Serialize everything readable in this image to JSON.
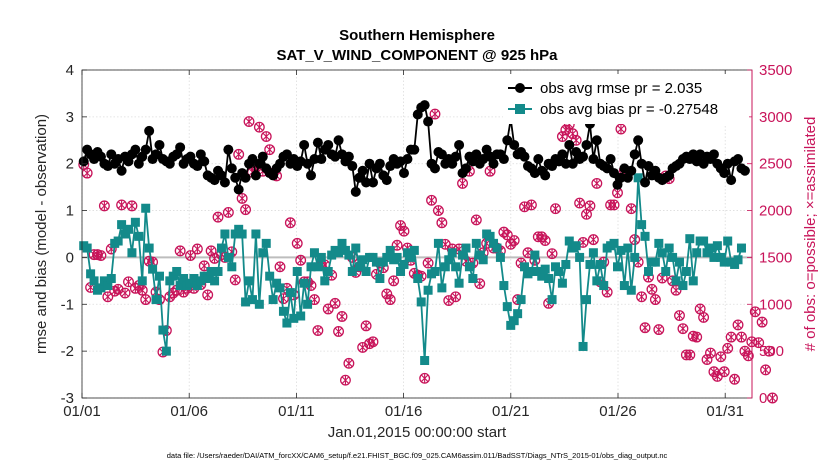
{
  "chart_data": {
    "type": "line",
    "title": "Southern Hemisphere",
    "subtitle": "SAT_V_WIND_COMPONENT @ 925 hPa",
    "xlabel": "Jan.01,2015 00:00:00 start",
    "ylabel": "rmse and bias (model - observation)",
    "y2label": "# of obs: o=possible; ×=assimilated",
    "footnote": "data file: /Users/raeder/DAI/ATM_forcXX/CAM6_setup/f.e21.FHIST_BGC.f09_025.CAM6assim.011/BadSST/Diags_NTrS_2015-01/obs_diag_output.nc",
    "xlim": [
      0,
      31.25
    ],
    "ylim": [
      -3,
      4
    ],
    "y2lim": [
      0,
      3500
    ],
    "xticks": [
      0,
      5,
      10,
      15,
      20,
      25,
      30
    ],
    "xticklabels": [
      "01/01",
      "01/06",
      "01/11",
      "01/16",
      "01/21",
      "01/26",
      "01/31"
    ],
    "yticks": [
      -3,
      -2,
      -1,
      0,
      1,
      2,
      3,
      4
    ],
    "yticklabels": [
      "-3",
      "-2",
      "-1",
      "0",
      "1",
      "2",
      "3",
      "4"
    ],
    "y2ticks": [
      0,
      500,
      1000,
      1500,
      2000,
      2500,
      3000,
      3500
    ],
    "y2ticklabels": [
      "0",
      "500",
      "1000",
      "1500",
      "2000",
      "2500",
      "3000",
      "3500"
    ],
    "grid": true,
    "legend_position": "top-right",
    "colors": {
      "rmse": "#000000",
      "bias": "#138a8a",
      "counts": "#c8145a",
      "zero": "#bdbdbd"
    },
    "series": [
      {
        "name": "obs avg rmse pr = 2.035",
        "axis": "left",
        "marker": "circle",
        "values": [
          2.05,
          2.3,
          2.2,
          2.1,
          2.25,
          2.15,
          2.0,
          1.95,
          2.2,
          2.0,
          2.1,
          1.85,
          2.15,
          2.05,
          2.2,
          2.3,
          2.0,
          2.15,
          2.3,
          2.7,
          2.1,
          2.2,
          2.4,
          2.1,
          2.05,
          2.0,
          2.15,
          2.2,
          2.35,
          2.0,
          2.1,
          2.15,
          2.0,
          1.95,
          2.2,
          2.05,
          1.75,
          1.7,
          1.65,
          1.85,
          1.75,
          1.6,
          2.3,
          1.9,
          1.7,
          1.45,
          1.8,
          1.7,
          2.0,
          2.1,
          1.75,
          2.0,
          2.15,
          1.9,
          1.8,
          1.75,
          1.9,
          2.0,
          2.15,
          2.2,
          2.0,
          2.1,
          1.95,
          2.05,
          2.4,
          2.0,
          1.75,
          2.1,
          2.45,
          2.1,
          2.3,
          2.4,
          2.2,
          2.15,
          2.5,
          2.2,
          2.05,
          2.15,
          1.95,
          1.4,
          1.7,
          1.85,
          1.6,
          2.0,
          1.6,
          1.9,
          2.0,
          1.75,
          1.65,
          1.95,
          2.1,
          2.0,
          2.05,
          1.8,
          2.1,
          2.3,
          2.3,
          3.05,
          3.2,
          3.25,
          2.9,
          2.0,
          1.9,
          2.25,
          2.2,
          2.0,
          2.1,
          2.0,
          2.15,
          2.4,
          1.8,
          1.9,
          2.15,
          2.05,
          2.2,
          2.0,
          2.1,
          2.3,
          2.15,
          2.0,
          2.2,
          2.2,
          2.1,
          2.5,
          2.95,
          2.4,
          2.2,
          2.25,
          2.15,
          1.95,
          1.9,
          1.8,
          2.1,
          1.85,
          1.75,
          2.0,
          1.95,
          2.1,
          2.05,
          2.2,
          2.0,
          2.4,
          2.0,
          2.25,
          2.1,
          2.15,
          2.4,
          2.85,
          2.1,
          2.5,
          2.0,
          1.95,
          1.9,
          2.1,
          1.8,
          1.55,
          1.7,
          1.9,
          1.7,
          1.85,
          2.2,
          2.5,
          2.0,
          1.6,
          1.95,
          1.75,
          1.85,
          1.7,
          1.65,
          1.7,
          1.75,
          1.9,
          1.95,
          2.0,
          2.1,
          2.15,
          2.1,
          2.2,
          2.05,
          2.2,
          2.0,
          2.15,
          2.1,
          2.2,
          2.0,
          1.9,
          1.8,
          2.0,
          1.65,
          2.05,
          2.1,
          1.9,
          1.85
        ]
      },
      {
        "name": "obs avg bias pr = -0.27548",
        "axis": "left",
        "marker": "square",
        "values": [
          0.25,
          0.2,
          -0.35,
          -0.5,
          -0.7,
          -0.65,
          -0.5,
          -0.6,
          -0.45,
          0.3,
          0.35,
          0.7,
          0.5,
          0.6,
          0.1,
          0.75,
          0.45,
          -0.5,
          1.05,
          0.2,
          -0.25,
          -0.9,
          -0.4,
          -1.55,
          -2.0,
          -0.5,
          -0.4,
          -0.3,
          -0.6,
          -0.45,
          -0.6,
          -0.55,
          -0.45,
          -0.6,
          -0.5,
          -0.4,
          -0.45,
          -0.3,
          -0.5,
          -0.3,
          0.2,
          0.5,
          0.0,
          -0.2,
          0.5,
          0.6,
          0.5,
          -0.95,
          -0.5,
          -0.9,
          0.5,
          -1.0,
          0.1,
          0.3,
          -0.4,
          -0.9,
          -0.55,
          -0.65,
          -1.15,
          -1.4,
          -0.75,
          -1.3,
          -0.3,
          -1.25,
          -0.55,
          -1.0,
          -0.2,
          0.1,
          -0.2,
          0.0,
          -0.5,
          -0.3,
          0.05,
          0.15,
          0.1,
          0.3,
          0.15,
          0.05,
          -0.3,
          0.2,
          -0.2,
          -0.05,
          -0.3,
          0.0,
          0.0,
          -0.1,
          -0.45,
          -0.1,
          0.0,
          0.15,
          -0.05,
          0.0,
          -0.3,
          -0.15,
          0.1,
          0.0,
          0.15,
          -0.45,
          -0.95,
          -2.2,
          -0.7,
          -0.35,
          -0.3,
          0.3,
          -0.65,
          -0.2,
          -0.05,
          0.1,
          -0.2,
          -0.55,
          0.05,
          0.2,
          -0.2,
          -0.45,
          0.3,
          0.05,
          -0.05,
          0.5,
          0.45,
          0.3,
          0.2,
          0.0,
          -0.6,
          -1.05,
          -1.45,
          -1.35,
          -1.2,
          -0.9,
          -0.2,
          -0.35,
          -0.3,
          0.05,
          -0.3,
          -0.4,
          -0.25,
          -0.45,
          -0.9,
          -0.2,
          -0.3,
          -0.55,
          -0.15,
          0.35,
          0.2,
          0.25,
          0.0,
          -1.9,
          -0.9,
          -0.15,
          0.1,
          -0.5,
          -0.15,
          -0.6,
          0.2,
          0.25,
          0.3,
          -0.2,
          0.15,
          -0.6,
          0.2,
          -0.7,
          0.0,
          1.7,
          0.7,
          0.45,
          -0.3,
          -0.1,
          -0.1,
          0.3,
          0.1,
          -0.3,
          0.2,
          0.0,
          -0.5,
          -0.1,
          -0.6,
          -0.3,
          0.4,
          -0.5,
          0.1,
          0.35,
          0.35,
          0.1,
          0.2,
          0.0,
          0.25,
          0.0,
          -0.1,
          0.35,
          -0.1,
          -0.15,
          -0.05,
          0.2
        ]
      },
      {
        "name": "possible / assimilated obs count",
        "axis": "right",
        "marker": "circle-x",
        "values": [
          2490,
          2400,
          1180,
          1530,
          1530,
          1520,
          2050,
          1080,
          1590,
          1140,
          1160,
          2060,
          1120,
          1240,
          2050,
          1170,
          1200,
          1150,
          1050,
          1460,
          1450,
          1130,
          1050,
          490,
          720,
          1080,
          1120,
          1150,
          1570,
          1130,
          1170,
          1520,
          1170,
          1590,
          1210,
          1410,
          1100,
          1570,
          1490,
          1930,
          1530,
          1500,
          1980,
          1560,
          1260,
          2600,
          2130,
          2010,
          2950,
          2410,
          2460,
          2890,
          2420,
          2790,
          2650,
          2400,
          2370,
          1400,
          1060,
          1170,
          1870,
          1100,
          1650,
          1470,
          1240,
          1240,
          1200,
          1050,
          720,
          1420,
          1420,
          950,
          1310,
          1010,
          710,
          870,
          190,
          370,
          1500,
          1340,
          1400,
          540,
          770,
          580,
          600,
          1320,
          1440,
          1390,
          1110,
          1050,
          1250,
          1630,
          1840,
          1780,
          1600,
          1470,
          1330,
          1310,
          1300,
          210,
          1440,
          2110,
          3030,
          2000,
          1870,
          1640,
          1040,
          1590,
          1080,
          1590,
          2290,
          1460,
          2420,
          1440,
          1900,
          1220,
          1550,
          1650,
          2420,
          1600,
          1600,
          1570,
          1770,
          1740,
          1640,
          1680,
          1050,
          1440,
          2040,
          1550,
          2060,
          1470,
          1720,
          1720,
          1680,
          1010,
          1540,
          2020,
          3040,
          2790,
          2860,
          2920,
          2820,
          2750,
          2080,
          1660,
          1960,
          2050,
          1690,
          2290,
          1240,
          1450,
          1130,
          2060,
          2060,
          2190,
          2870,
          2430,
          2400,
          2020,
          1690,
          1450,
          1080,
          750,
          1290,
          1160,
          1050,
          730,
          1280,
          2370,
          2340,
          1250,
          1150,
          880,
          740,
          460,
          460,
          660,
          650,
          950,
          860,
          410,
          480,
          280,
          230,
          440,
          280,
          530,
          650,
          200,
          780,
          650,
          500,
          450,
          600,
          920,
          590,
          810,
          300,
          500,
          0
        ]
      }
    ]
  }
}
